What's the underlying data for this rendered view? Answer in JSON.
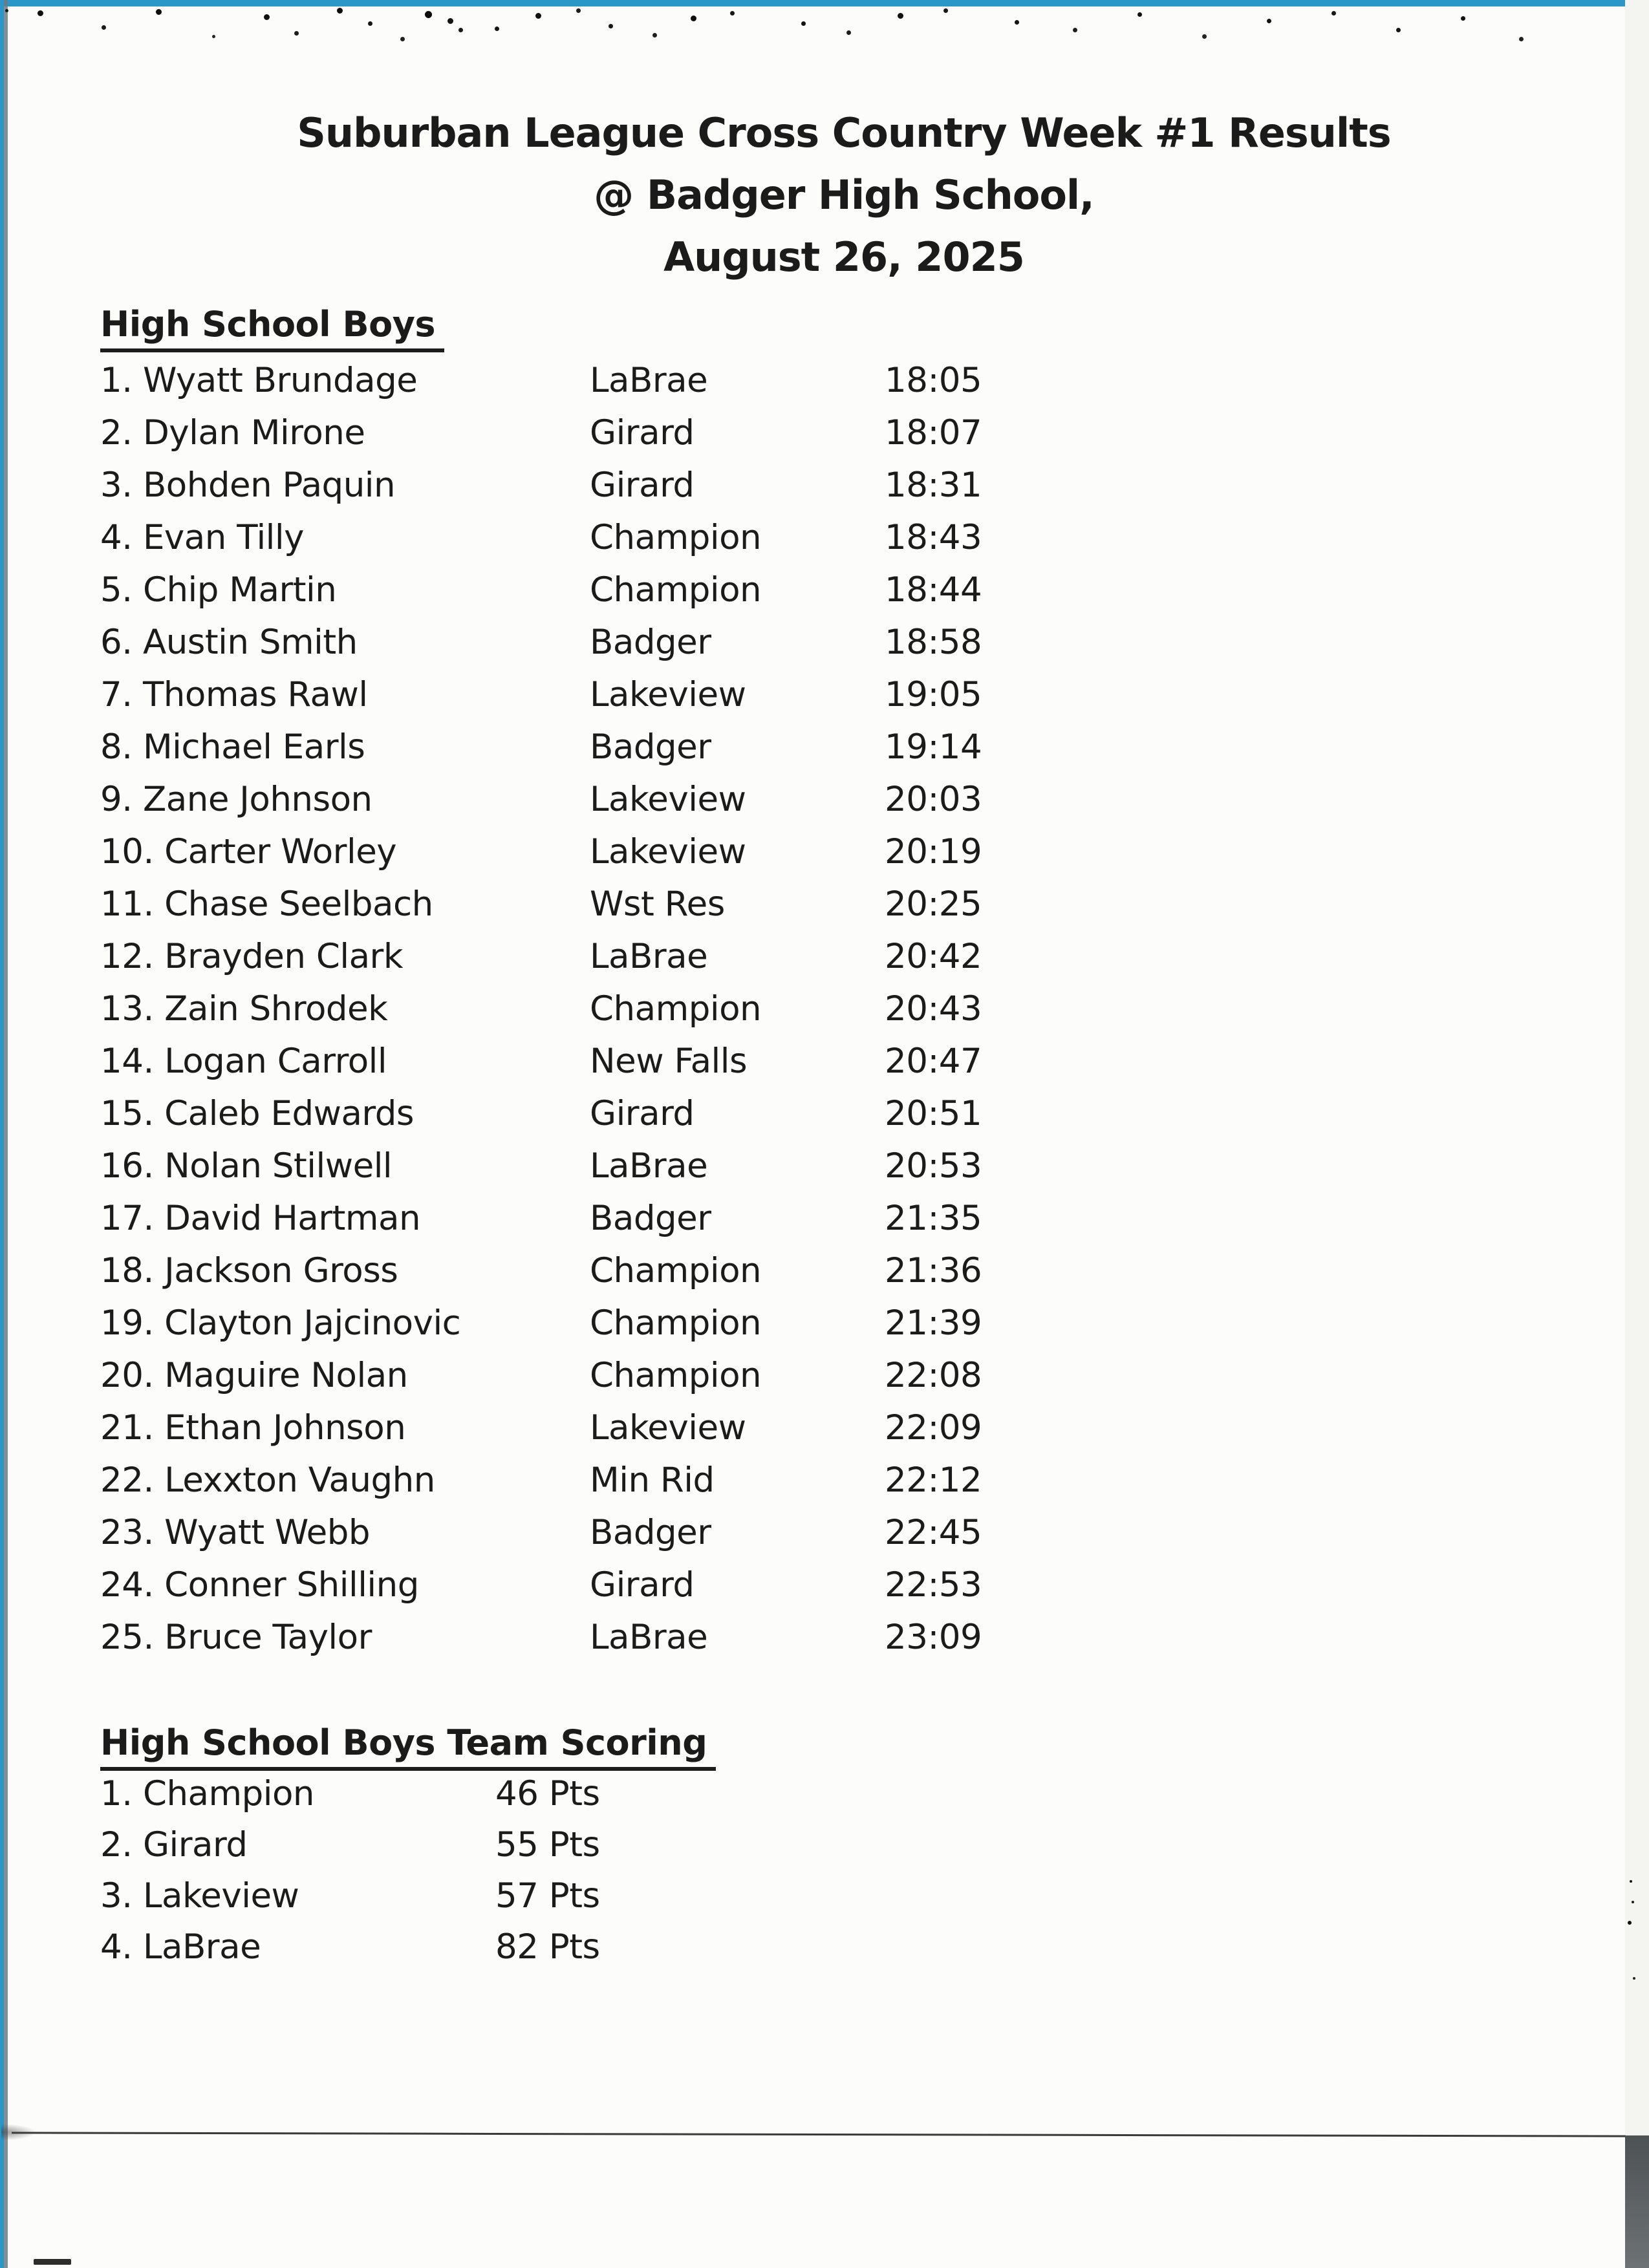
{
  "document": {
    "title_lines": [
      "Suburban League Cross Country Week #1 Results",
      "@ Badger High School,",
      "August 26, 2025"
    ]
  },
  "results": {
    "heading": "High School Boys",
    "rows": [
      {
        "rank_label": "1.",
        "name": "Wyatt Brundage",
        "school": "LaBrae",
        "time": "18:05"
      },
      {
        "rank_label": "2.",
        "name": "Dylan Mirone",
        "school": "Girard",
        "time": "18:07"
      },
      {
        "rank_label": "3.",
        "name": "Bohden Paquin",
        "school": "Girard",
        "time": "18:31"
      },
      {
        "rank_label": "4.",
        "name": "Evan Tilly",
        "school": "Champion",
        "time": "18:43"
      },
      {
        "rank_label": "5.",
        "name": "Chip Martin",
        "school": "Champion",
        "time": "18:44"
      },
      {
        "rank_label": "6.",
        "name": "Austin Smith",
        "school": "Badger",
        "time": "18:58"
      },
      {
        "rank_label": "7.",
        "name": "Thomas Rawl",
        "school": "Lakeview",
        "time": "19:05"
      },
      {
        "rank_label": "8.",
        "name": "Michael Earls",
        "school": "Badger",
        "time": "19:14"
      },
      {
        "rank_label": "9.",
        "name": "Zane Johnson",
        "school": "Lakeview",
        "time": "20:03"
      },
      {
        "rank_label": "10.",
        "name": "Carter Worley",
        "school": "Lakeview",
        "time": "20:19"
      },
      {
        "rank_label": "11.",
        "name": "Chase Seelbach",
        "school": "Wst Res",
        "time": "20:25"
      },
      {
        "rank_label": "12.",
        "name": "Brayden Clark",
        "school": "LaBrae",
        "time": "20:42"
      },
      {
        "rank_label": "13.",
        "name": "Zain Shrodek",
        "school": "Champion",
        "time": "20:43"
      },
      {
        "rank_label": "14.",
        "name": "Logan Carroll",
        "school": "New Falls",
        "time": "20:47"
      },
      {
        "rank_label": "15.",
        "name": "Caleb Edwards",
        "school": "Girard",
        "time": "20:51"
      },
      {
        "rank_label": "16.",
        "name": "Nolan Stilwell",
        "school": "LaBrae",
        "time": "20:53"
      },
      {
        "rank_label": "17.",
        "name": "David Hartman",
        "school": "Badger",
        "time": "21:35"
      },
      {
        "rank_label": "18.",
        "name": "Jackson Gross",
        "school": "Champion",
        "time": "21:36"
      },
      {
        "rank_label": "19.",
        "name": "Clayton Jajcinovic",
        "school": "Champion",
        "time": "21:39"
      },
      {
        "rank_label": "20.",
        "name": "Maguire Nolan",
        "school": "Champion",
        "time": "22:08"
      },
      {
        "rank_label": "21.",
        "name": "Ethan Johnson",
        "school": "Lakeview",
        "time": "22:09"
      },
      {
        "rank_label": "22.",
        "name": "Lexxton Vaughn",
        "school": "Min Rid",
        "time": "22:12"
      },
      {
        "rank_label": "23.",
        "name": "Wyatt Webb",
        "school": "Badger",
        "time": "22:45"
      },
      {
        "rank_label": "24.",
        "name": "Conner Shilling",
        "school": "Girard",
        "time": "22:53"
      },
      {
        "rank_label": "25.",
        "name": "Bruce Taylor",
        "school": "LaBrae",
        "time": "23:09"
      }
    ]
  },
  "team_scoring": {
    "heading": "High School Boys Team Scoring",
    "rows": [
      {
        "rank_label": "1.",
        "team": "Champion",
        "points_label": "46 Pts"
      },
      {
        "rank_label": "2.",
        "team": "Girard",
        "points_label": "55 Pts"
      },
      {
        "rank_label": "3.",
        "team": "Lakeview",
        "points_label": "57 Pts"
      },
      {
        "rank_label": "4.",
        "team": "LaBrae",
        "points_label": "82 Pts"
      }
    ]
  },
  "colors": {
    "strip_cyan": "#2a97c8",
    "strip_gray": "#6e7a82",
    "corner_dark": "#54595c",
    "ink": "#1b1b1b",
    "paper": "#fcfcfa"
  }
}
